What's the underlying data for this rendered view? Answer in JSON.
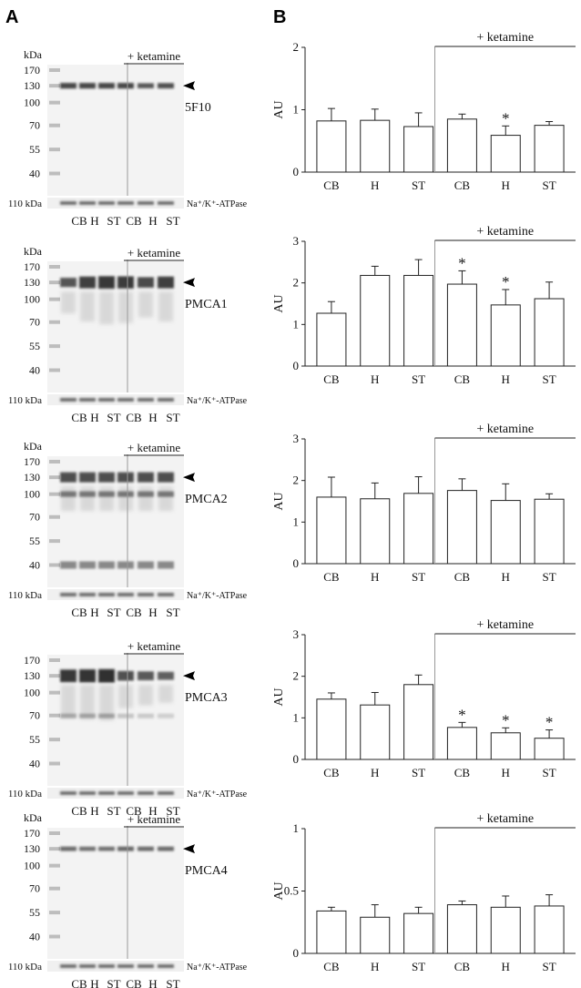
{
  "panel_labels": [
    "A",
    "B"
  ],
  "blots": [
    {
      "antibody": "5F10",
      "kda_unit": "kDa",
      "markers": [
        "170",
        "130",
        "100",
        "70",
        "55",
        "40"
      ],
      "ketamine_label": "+ ketamine",
      "loading_label": "110 kDa",
      "control_label": "Na⁺/K⁺-ATPase",
      "lanes": [
        "CB",
        "H",
        "ST",
        "CB",
        "H",
        "ST"
      ]
    },
    {
      "antibody": "PMCA1",
      "kda_unit": "kDa",
      "markers": [
        "170",
        "130",
        "100",
        "70",
        "55",
        "40"
      ],
      "ketamine_label": "+ ketamine",
      "loading_label": "110 kDa",
      "control_label": "Na⁺/K⁺-ATPase",
      "lanes": [
        "CB",
        "H",
        "ST",
        "CB",
        "H",
        "ST"
      ]
    },
    {
      "antibody": "PMCA2",
      "kda_unit": "kDa",
      "markers": [
        "170",
        "130",
        "100",
        "70",
        "55",
        "40"
      ],
      "ketamine_label": "+ ketamine",
      "loading_label": "110 kDa",
      "control_label": "Na⁺/K⁺-ATPase",
      "lanes": [
        "CB",
        "H",
        "ST",
        "CB",
        "H",
        "ST"
      ]
    },
    {
      "antibody": "PMCA3",
      "kda_unit": "",
      "markers": [
        "170",
        "130",
        "100",
        "70",
        "55",
        "40"
      ],
      "ketamine_label": "+ ketamine",
      "loading_label": "110 kDa",
      "control_label": "Na⁺/K⁺-ATPase",
      "lanes": [
        "CB",
        "H",
        "ST",
        "CB",
        "H",
        "ST"
      ]
    },
    {
      "antibody": "PMCA4",
      "kda_unit": "kDa",
      "markers": [
        "170",
        "130",
        "100",
        "70",
        "55",
        "40"
      ],
      "ketamine_label": "+ ketamine",
      "loading_label": "110 kDa",
      "control_label": "Na⁺/K⁺-ATPase",
      "lanes": [
        "CB",
        "H",
        "ST",
        "CB",
        "H",
        "ST"
      ]
    }
  ],
  "chart_data": [
    {
      "type": "bar",
      "categories": [
        "CB",
        "H",
        "ST",
        "CB",
        "H",
        "ST"
      ],
      "values": [
        0.82,
        0.83,
        0.73,
        0.85,
        0.59,
        0.75
      ],
      "errors": [
        0.2,
        0.18,
        0.22,
        0.08,
        0.15,
        0.06
      ],
      "significant": [
        false,
        false,
        false,
        false,
        true,
        false
      ],
      "ylabel": "AU",
      "ylim": [
        0,
        2
      ],
      "yticks": [
        "0",
        "1",
        "2"
      ],
      "group_label": "+ ketamine",
      "group_start_index": 3,
      "marker": "*"
    },
    {
      "type": "bar",
      "categories": [
        "CB",
        "H",
        "ST",
        "CB",
        "H",
        "ST"
      ],
      "values": [
        1.27,
        2.18,
        2.18,
        1.97,
        1.47,
        1.62
      ],
      "errors": [
        0.28,
        0.22,
        0.38,
        0.32,
        0.37,
        0.4
      ],
      "significant": [
        false,
        false,
        false,
        true,
        true,
        false
      ],
      "ylabel": "AU",
      "ylim": [
        0,
        3
      ],
      "yticks": [
        "0",
        "1",
        "2",
        "3"
      ],
      "group_label": "+ ketamine",
      "group_start_index": 3,
      "marker": "*"
    },
    {
      "type": "bar",
      "categories": [
        "CB",
        "H",
        "ST",
        "CB",
        "H",
        "ST"
      ],
      "values": [
        1.6,
        1.56,
        1.69,
        1.76,
        1.52,
        1.55
      ],
      "errors": [
        0.48,
        0.38,
        0.4,
        0.28,
        0.4,
        0.13
      ],
      "significant": [
        false,
        false,
        false,
        false,
        false,
        false
      ],
      "ylabel": "AU",
      "ylim": [
        0,
        3
      ],
      "yticks": [
        "0",
        "1",
        "2",
        "3"
      ],
      "group_label": "+ ketamine",
      "group_start_index": 3,
      "marker": "*"
    },
    {
      "type": "bar",
      "categories": [
        "CB",
        "H",
        "ST",
        "CB",
        "H",
        "ST"
      ],
      "values": [
        1.45,
        1.31,
        1.8,
        0.77,
        0.64,
        0.51
      ],
      "errors": [
        0.15,
        0.3,
        0.23,
        0.12,
        0.12,
        0.2
      ],
      "significant": [
        false,
        false,
        false,
        true,
        true,
        true
      ],
      "ylabel": "AU",
      "ylim": [
        0,
        3
      ],
      "yticks": [
        "0",
        "1",
        "2",
        "3"
      ],
      "group_label": "+ ketamine",
      "group_start_index": 3,
      "marker": "*"
    },
    {
      "type": "bar",
      "categories": [
        "CB",
        "H",
        "ST",
        "CB",
        "H",
        "ST"
      ],
      "values": [
        0.34,
        0.29,
        0.32,
        0.39,
        0.37,
        0.38
      ],
      "errors": [
        0.03,
        0.1,
        0.05,
        0.03,
        0.09,
        0.09
      ],
      "significant": [
        false,
        false,
        false,
        false,
        false,
        false
      ],
      "ylabel": "AU",
      "ylim": [
        0,
        1
      ],
      "yticks": [
        "0",
        "0.5",
        "1"
      ],
      "group_label": "+ ketamine",
      "group_start_index": 3,
      "marker": "*"
    }
  ]
}
